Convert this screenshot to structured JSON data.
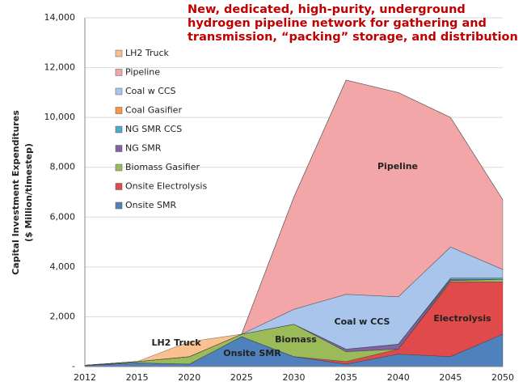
{
  "chart_data": {
    "type": "stacked_area",
    "annotation": "New, dedicated, high-purity, underground hydrogen pipeline network for gathering and transmission, “packing” storage, and distribution",
    "y_label": [
      "Capital Investment Expenditures",
      "($ Million/timestep)"
    ],
    "categories": [
      "2012",
      "2015",
      "2020",
      "2025",
      "2030",
      "2035",
      "2040",
      "2045",
      "2050"
    ],
    "series": [
      {
        "name": "Onsite SMR",
        "color": "#4f81bd",
        "values": [
          50,
          150,
          100,
          1200,
          400,
          100,
          500,
          400,
          1300
        ]
      },
      {
        "name": "Onsite Electrolysis",
        "color": "#e04a4a",
        "values": [
          0,
          0,
          0,
          0,
          0,
          100,
          200,
          3000,
          2100
        ]
      },
      {
        "name": "Biomass Gasifier",
        "color": "#9bbb59",
        "values": [
          0,
          50,
          300,
          100,
          1300,
          400,
          0,
          50,
          100
        ]
      },
      {
        "name": "NG SMR",
        "color": "#8064a2",
        "values": [
          0,
          0,
          0,
          0,
          0,
          100,
          200,
          50,
          0
        ]
      },
      {
        "name": "NG SMR CCS",
        "color": "#4bacc6",
        "values": [
          0,
          0,
          0,
          0,
          0,
          0,
          0,
          50,
          50
        ]
      },
      {
        "name": "Coal Gasifier",
        "color": "#f79646",
        "values": [
          0,
          0,
          0,
          0,
          0,
          0,
          0,
          0,
          0
        ]
      },
      {
        "name": "Coal w CCS",
        "color": "#a9c5ec",
        "values": [
          0,
          0,
          0,
          0,
          600,
          2200,
          1900,
          1250,
          350
        ]
      },
      {
        "name": "Pipeline",
        "color": "#f2a6a8",
        "values": [
          0,
          0,
          0,
          0,
          4500,
          8600,
          8200,
          5200,
          2800
        ]
      },
      {
        "name": "LH2 Truck",
        "color": "#fac090",
        "values": [
          0,
          0,
          600,
          0,
          0,
          0,
          0,
          0,
          0
        ]
      }
    ],
    "area_labels": [
      "Pipeline",
      "Coal w CCS",
      "Electrolysis",
      "Biomass",
      "Onsite SMR",
      "LH2 Truck"
    ],
    "ylim": [
      0,
      14000
    ],
    "yticks": [
      {
        "value": 0,
        "label": "-"
      },
      {
        "value": 2000,
        "label": "2,000"
      },
      {
        "value": 4000,
        "label": "4,000"
      },
      {
        "value": 6000,
        "label": "6,000"
      },
      {
        "value": 8000,
        "label": "8,000"
      },
      {
        "value": 10000,
        "label": "10,000"
      },
      {
        "value": 12000,
        "label": "12,000"
      },
      {
        "value": 14000,
        "label": "14,000"
      }
    ],
    "grid": true
  }
}
